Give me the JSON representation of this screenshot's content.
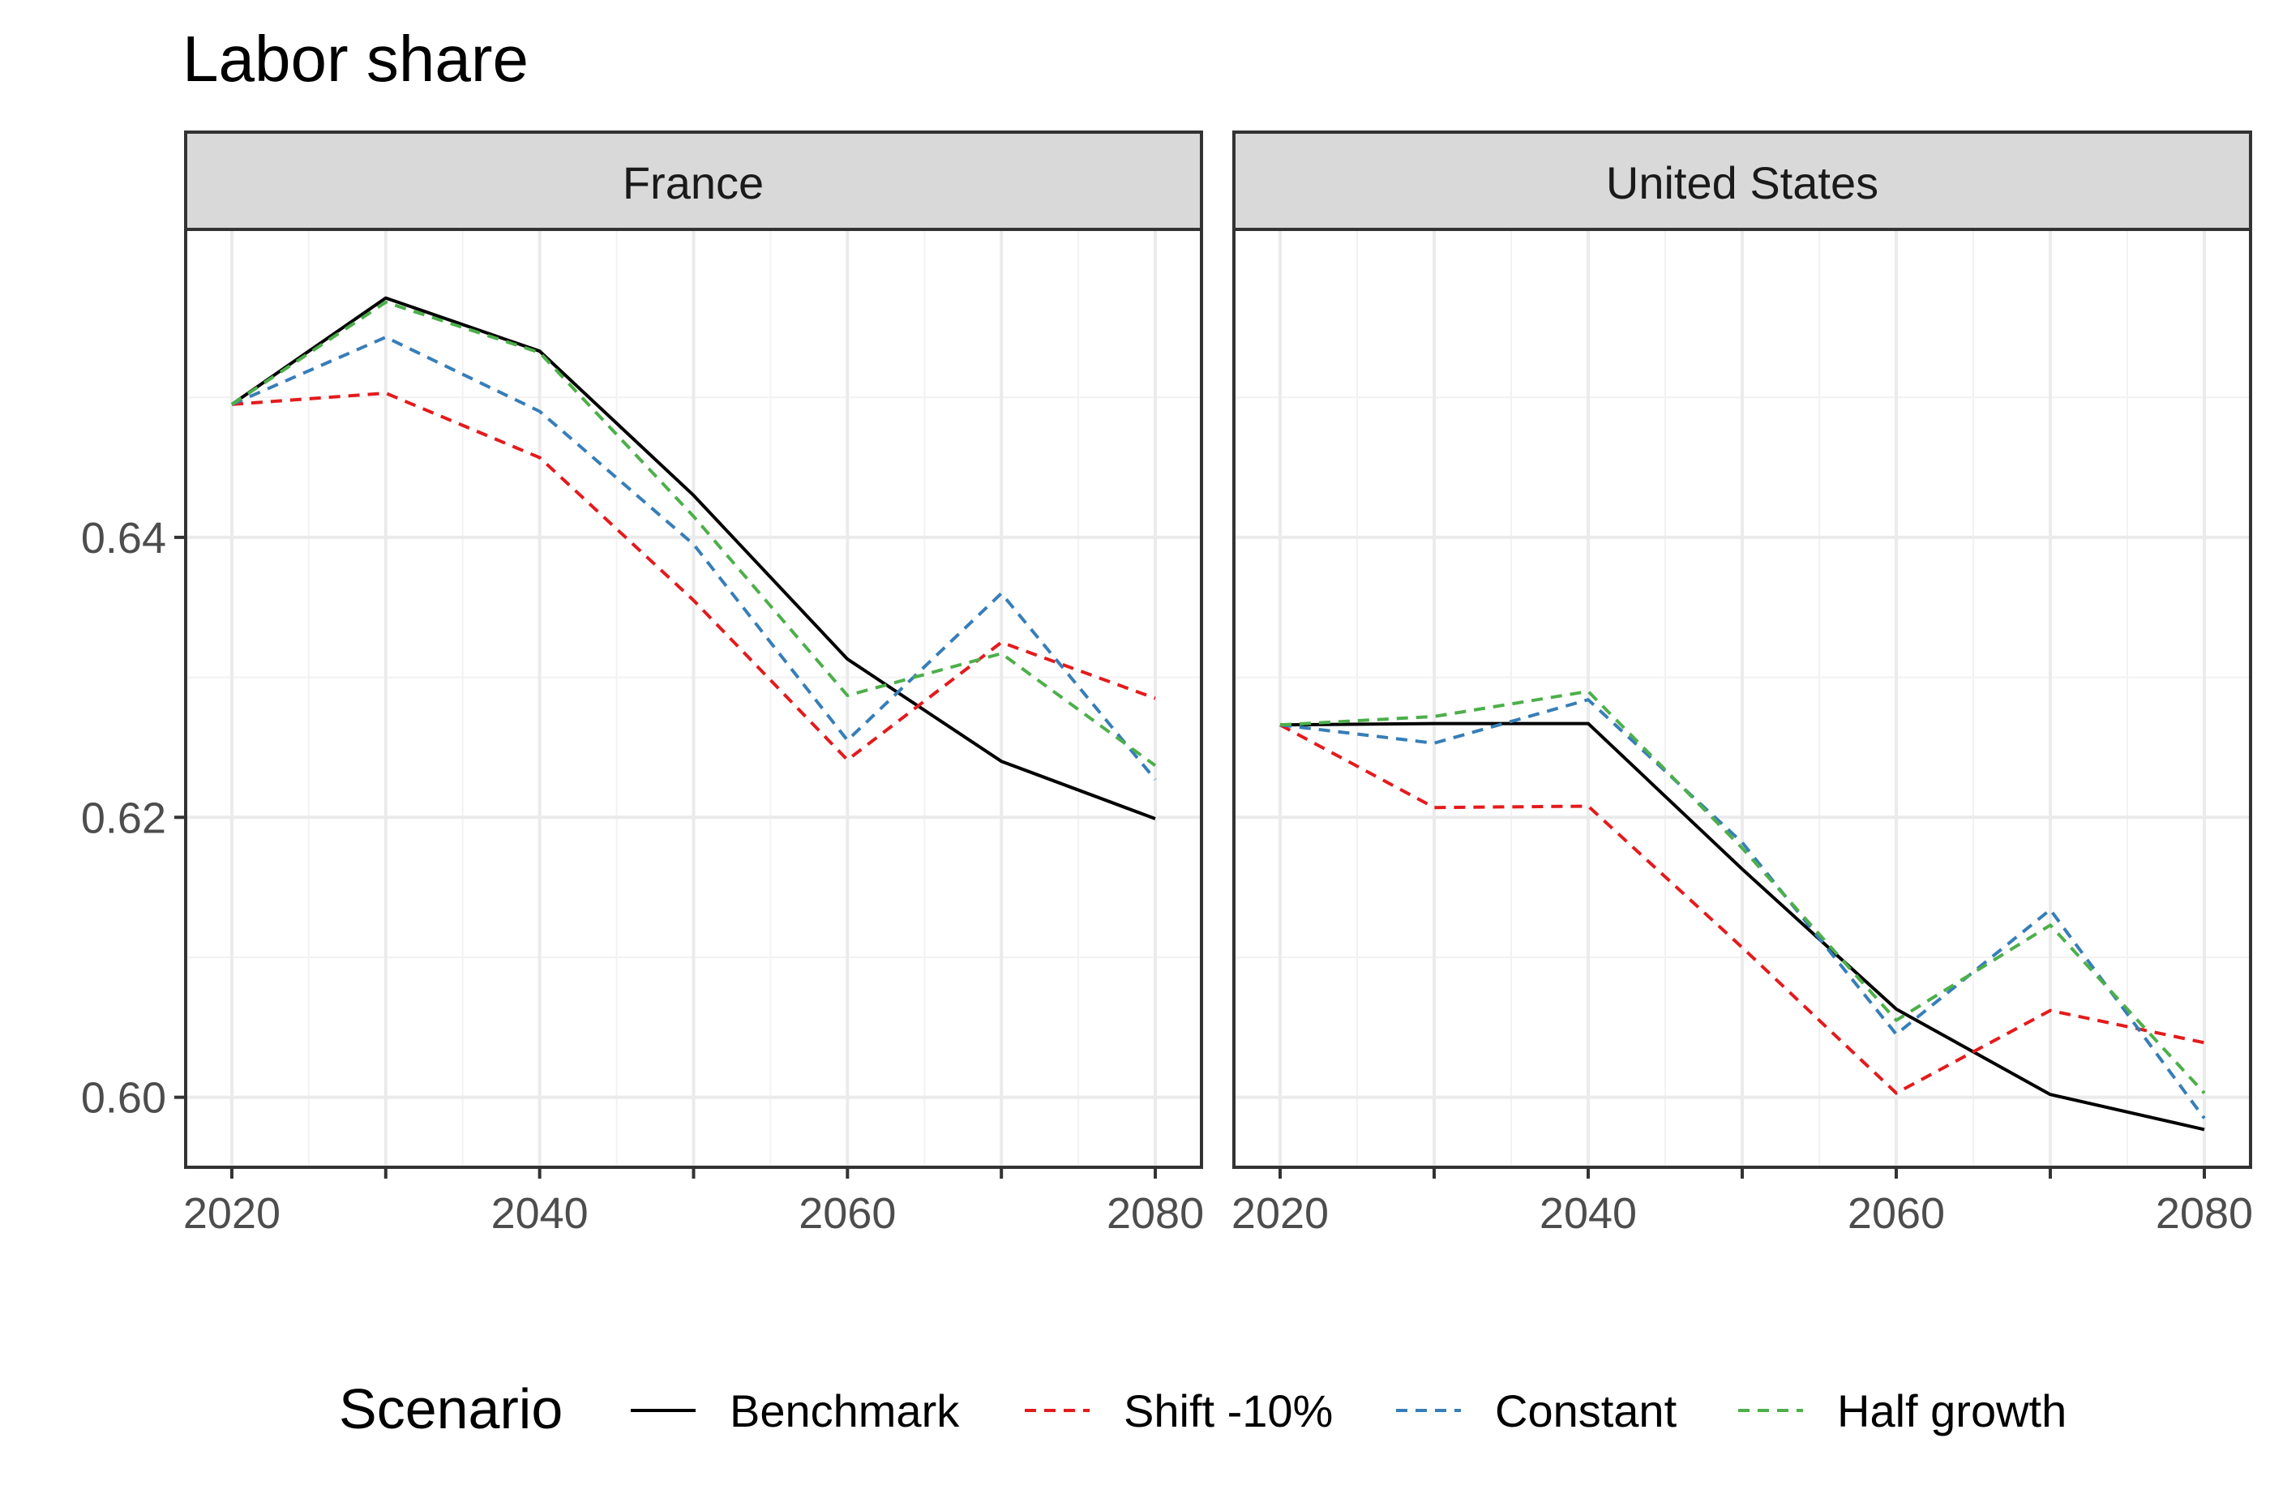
{
  "chart_data": {
    "type": "line",
    "title": "Labor share",
    "xlabel": "",
    "ylabel": "",
    "x": [
      2020,
      2030,
      2040,
      2050,
      2060,
      2070,
      2080
    ],
    "xlim": [
      2017,
      2083
    ],
    "ylim": [
      0.595,
      0.662
    ],
    "x_ticks": [
      2020,
      2040,
      2060,
      2080
    ],
    "x_tick_labels": [
      "2020",
      "2040",
      "2060",
      "2080"
    ],
    "y_ticks": [
      0.6,
      0.62,
      0.64
    ],
    "y_tick_labels": [
      "0.60",
      "0.62",
      "0.64"
    ],
    "grid": true,
    "legend_title": "Scenario",
    "legend_position": "bottom",
    "series_styles": [
      {
        "name": "Benchmark",
        "color": "#000000",
        "dash": "solid"
      },
      {
        "name": "Shift -10%",
        "color": "#e41a1c",
        "dash": "dashed"
      },
      {
        "name": "Constant",
        "color": "#377eb8",
        "dash": "dashed"
      },
      {
        "name": "Half growth",
        "color": "#4daf4a",
        "dash": "dashed"
      }
    ],
    "panels": [
      {
        "strip_label": "France",
        "series": [
          {
            "name": "Benchmark",
            "values": [
              0.6495,
              0.6571,
              0.6533,
              0.643,
              0.6313,
              0.624,
              0.6199
            ]
          },
          {
            "name": "Shift -10%",
            "values": [
              0.6495,
              0.6503,
              0.6457,
              0.6355,
              0.6241,
              0.6325,
              0.6285
            ]
          },
          {
            "name": "Constant",
            "values": [
              0.6495,
              0.6543,
              0.649,
              0.6395,
              0.6255,
              0.636,
              0.6227
            ]
          },
          {
            "name": "Half growth",
            "values": [
              0.6495,
              0.6568,
              0.6532,
              0.6415,
              0.6287,
              0.6317,
              0.6237
            ]
          }
        ]
      },
      {
        "strip_label": "United States",
        "series": [
          {
            "name": "Benchmark",
            "values": [
              0.6266,
              0.6267,
              0.6267,
              0.6163,
              0.6063,
              0.6002,
              0.5977
            ]
          },
          {
            "name": "Shift -10%",
            "values": [
              0.6266,
              0.6207,
              0.6208,
              0.6107,
              0.6003,
              0.6062,
              0.6039
            ]
          },
          {
            "name": "Constant",
            "values": [
              0.6266,
              0.6253,
              0.6284,
              0.6182,
              0.6045,
              0.6134,
              0.5985
            ]
          },
          {
            "name": "Half growth",
            "values": [
              0.6266,
              0.6272,
              0.629,
              0.6178,
              0.6055,
              0.6123,
              0.6003
            ]
          }
        ]
      }
    ]
  }
}
